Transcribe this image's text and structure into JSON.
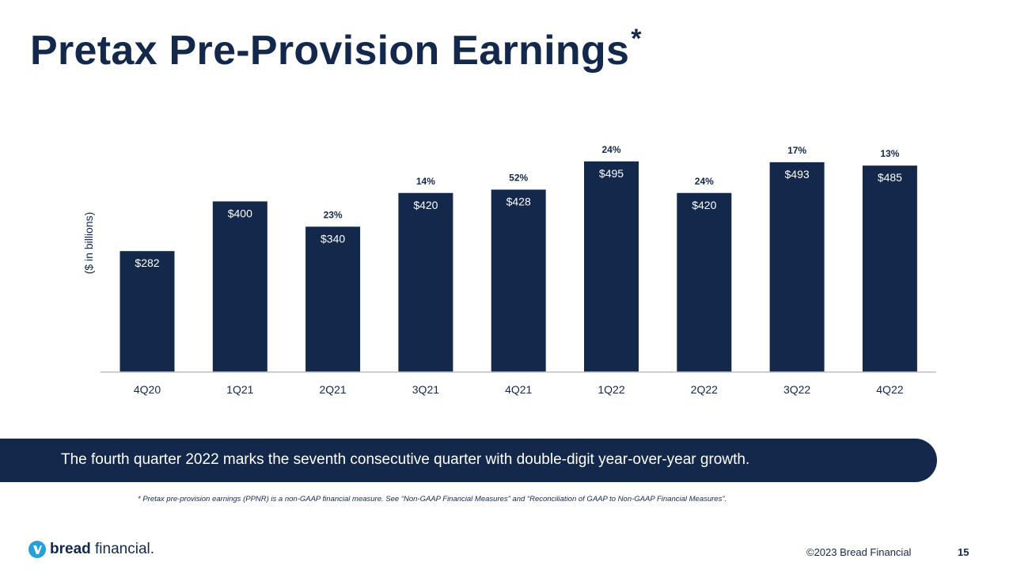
{
  "slide": {
    "title": "Pretax Pre-Provision Earnings",
    "title_mark": "*",
    "banner_text": "The fourth quarter 2022 marks the seventh consecutive quarter with double-digit year-over-year growth.",
    "footnote": "* Pretax pre-provision earnings (PPNR) is a non-GAAP financial measure. See “Non-GAAP Financial Measures” and “Reconciliation of GAAP to Non-GAAP Financial Measures”.",
    "copyright": "©2023 Bread Financial",
    "page_number": "15"
  },
  "brand": {
    "name_bold": "bread",
    "name_regular": " financial",
    "name_suffix": ".",
    "logo_icon": "bread-logo-icon"
  },
  "colors": {
    "primary": "#14284b",
    "logo": "#2a9ed8",
    "axis": "#bfbfbf"
  },
  "chart_data": {
    "type": "bar",
    "title": "",
    "ylabel": "($ in billions)",
    "xlabel": "",
    "categories": [
      "4Q20",
      "1Q21",
      "2Q21",
      "3Q21",
      "4Q21",
      "1Q22",
      "2Q22",
      "3Q22",
      "4Q22"
    ],
    "values": [
      282,
      400,
      340,
      420,
      428,
      495,
      420,
      493,
      485
    ],
    "value_labels": [
      "$282",
      "$400",
      "$340",
      "$420",
      "$428",
      "$495",
      "$420",
      "$493",
      "$485"
    ],
    "growth_labels": [
      "",
      "",
      "23%",
      "14%",
      "52%",
      "24%",
      "24%",
      "17%",
      "13%"
    ],
    "ylim": [
      0,
      500
    ],
    "grid": false,
    "legend": "none"
  }
}
